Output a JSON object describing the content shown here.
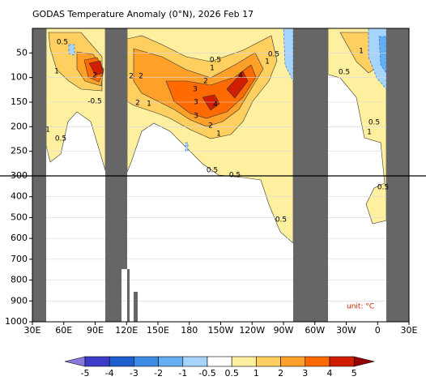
{
  "chart_data": {
    "type": "contour",
    "title": "GODAS Temperature Anomaly (0°N), 2026 Feb 17",
    "xlim": [
      30,
      390
    ],
    "xticks": [
      {
        "value": 30,
        "label": "30E"
      },
      {
        "value": 60,
        "label": "60E"
      },
      {
        "value": 90,
        "label": "90E"
      },
      {
        "value": 120,
        "label": "120E"
      },
      {
        "value": 150,
        "label": "150E"
      },
      {
        "value": 180,
        "label": "180"
      },
      {
        "value": 210,
        "label": "150W"
      },
      {
        "value": 240,
        "label": "120W"
      },
      {
        "value": 270,
        "label": "90W"
      },
      {
        "value": 300,
        "label": "60W"
      },
      {
        "value": 330,
        "label": "30W"
      },
      {
        "value": 360,
        "label": "0"
      },
      {
        "value": 390,
        "label": "30E"
      }
    ],
    "ylim": [
      0,
      1000
    ],
    "yticks": [
      50,
      100,
      150,
      200,
      250,
      300,
      400,
      500,
      600,
      700,
      800,
      900,
      1000
    ],
    "levels": [
      -5,
      -4,
      -3,
      -2,
      -1,
      -0.5,
      0.5,
      1,
      2,
      3,
      4,
      5
    ],
    "colors": [
      "#8c78d8",
      "#3c3cc8",
      "#1e5fd0",
      "#3c8ce6",
      "#64aef2",
      "#a6d4fa",
      "#ffffff",
      "#fff0a0",
      "#ffd060",
      "#ffa028",
      "#ff6a00",
      "#d21e00",
      "#960000"
    ],
    "contour_labels": [
      0.5,
      1,
      2,
      -0.5,
      2,
      2,
      2,
      1,
      0.5,
      1,
      2,
      3,
      4,
      3,
      4,
      3,
      2,
      1,
      0.5,
      0.5,
      1,
      0.5,
      0.5,
      1,
      1,
      0.5,
      0.5,
      1,
      0.5,
      0.5
    ],
    "unit_label": "unit: °C"
  }
}
